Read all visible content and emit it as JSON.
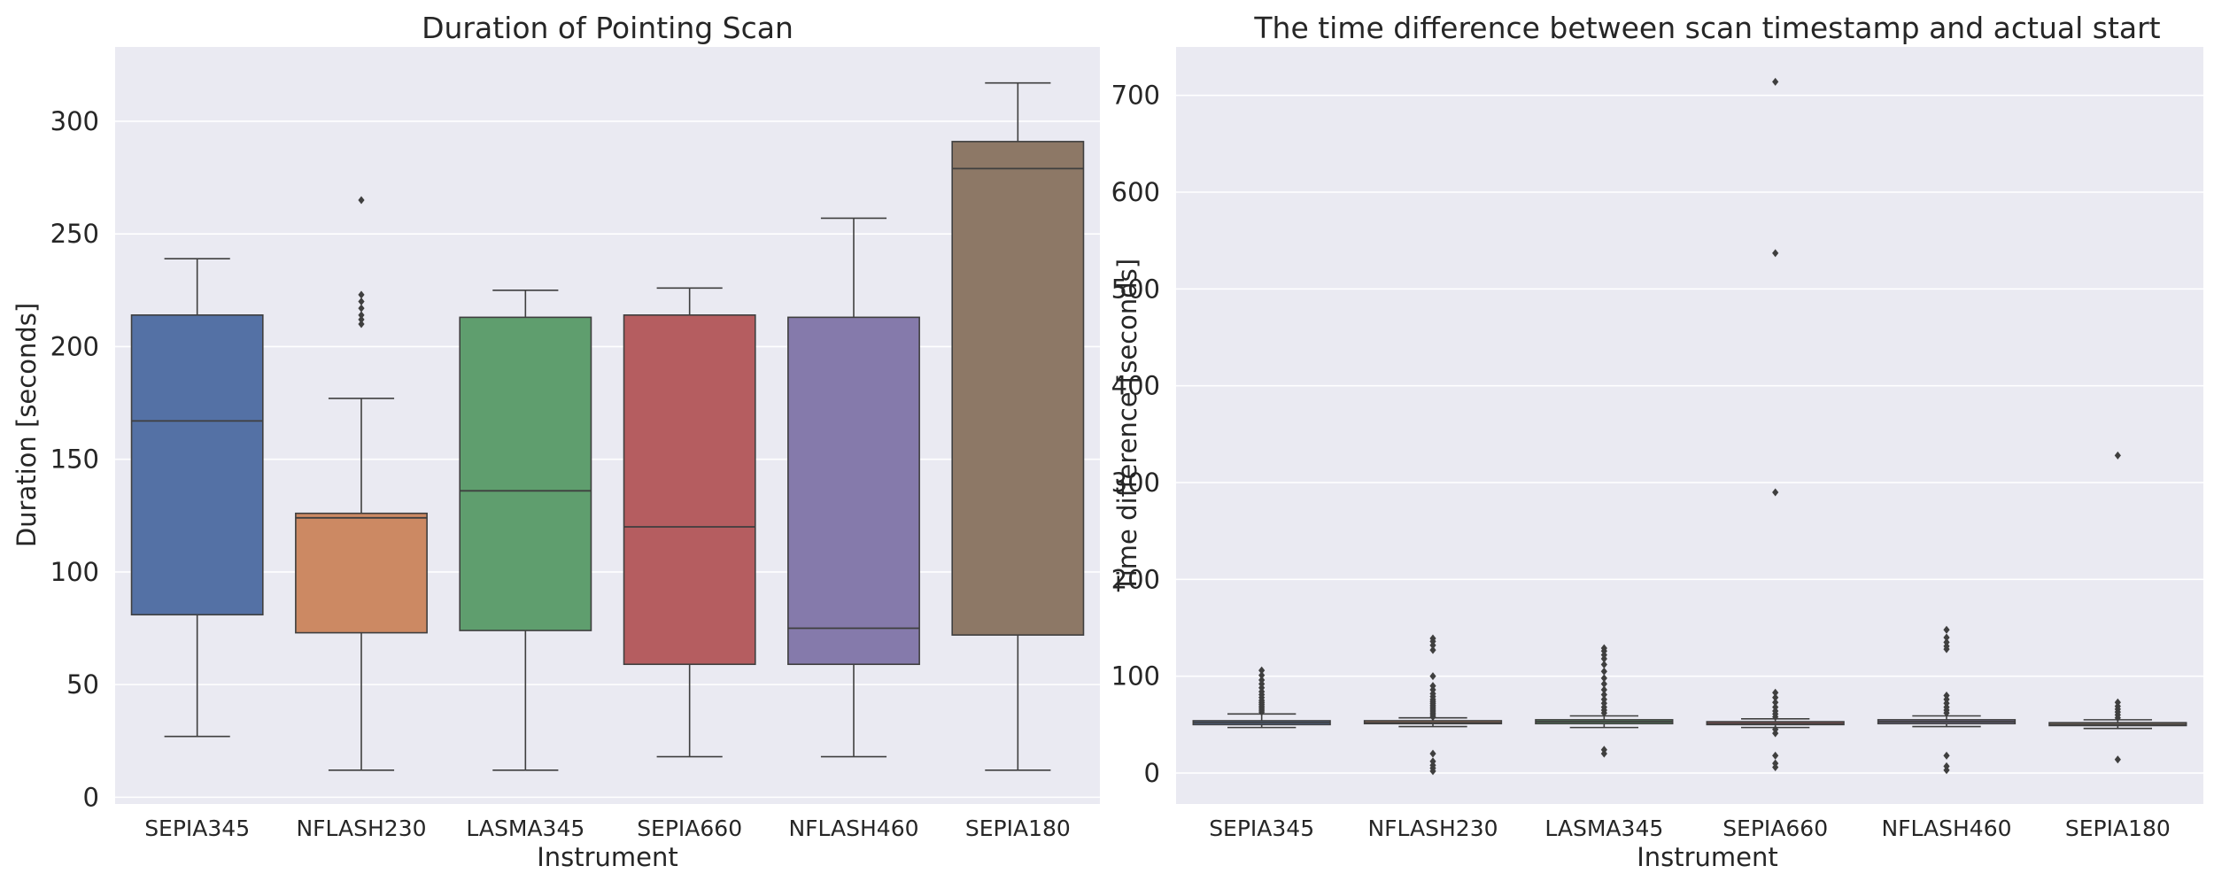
{
  "colors": {
    "plot_bg": "#EAEAF2",
    "grid": "#FFFFFF",
    "line": "#3F3F3F",
    "text": "#262626"
  },
  "chart_data": [
    {
      "type": "box",
      "title": "Duration of Pointing Scan",
      "xlabel": "Instrument",
      "ylabel": "Duration [seconds]",
      "ylim": [
        -3,
        333
      ],
      "yticks": [
        0,
        50,
        100,
        150,
        200,
        250,
        300
      ],
      "grid": true,
      "categories": [
        "SEPIA345",
        "NFLASH230",
        "LASMA345",
        "SEPIA660",
        "NFLASH460",
        "SEPIA180"
      ],
      "series": [
        {
          "color": "#5471A5",
          "whisker_low": 27,
          "q1": 81,
          "median": 167,
          "q3": 214,
          "whisker_high": 239,
          "outliers": []
        },
        {
          "color": "#CC8963",
          "whisker_low": 12,
          "q1": 73,
          "median": 124,
          "q3": 126,
          "whisker_high": 177,
          "outliers": [
            210,
            212,
            214,
            217,
            220,
            223,
            265
          ]
        },
        {
          "color": "#5F9E6E",
          "whisker_low": 12,
          "q1": 74,
          "median": 136,
          "q3": 213,
          "whisker_high": 225,
          "outliers": []
        },
        {
          "color": "#B55D60",
          "whisker_low": 18,
          "q1": 59,
          "median": 120,
          "q3": 214,
          "whisker_high": 226,
          "outliers": []
        },
        {
          "color": "#857AAB",
          "whisker_low": 18,
          "q1": 59,
          "median": 75,
          "q3": 213,
          "whisker_high": 257,
          "outliers": []
        },
        {
          "color": "#8D7866",
          "whisker_low": 12,
          "q1": 72,
          "median": 279,
          "q3": 291,
          "whisker_high": 317,
          "outliers": []
        }
      ]
    },
    {
      "type": "box",
      "title": "The time difference between scan timestamp and actual start",
      "xlabel": "Instrument",
      "ylabel": "Time difference [seconds]",
      "ylim": [
        -32,
        750
      ],
      "yticks": [
        0,
        100,
        200,
        300,
        400,
        500,
        600,
        700
      ],
      "grid": true,
      "categories": [
        "SEPIA345",
        "NFLASH230",
        "LASMA345",
        "SEPIA660",
        "NFLASH460",
        "SEPIA180"
      ],
      "series": [
        {
          "color": "#5471A5",
          "whisker_low": 47,
          "q1": 50,
          "median": 52,
          "q3": 54,
          "whisker_high": 61,
          "outliers": [
            63,
            65,
            67,
            69,
            71,
            73,
            75,
            78,
            81,
            84,
            88,
            92,
            96,
            101,
            106
          ]
        },
        {
          "color": "#CC8963",
          "whisker_low": 48,
          "q1": 51,
          "median": 52,
          "q3": 54,
          "whisker_high": 57,
          "outliers": [
            2,
            5,
            8,
            12,
            20,
            58,
            60,
            62,
            64,
            66,
            68,
            70,
            72,
            74,
            76,
            79,
            82,
            86,
            90,
            100,
            127,
            132,
            136,
            139
          ]
        },
        {
          "color": "#5F9E6E",
          "whisker_low": 47,
          "q1": 51,
          "median": 53,
          "q3": 55,
          "whisker_high": 59,
          "outliers": [
            20,
            24,
            62,
            65,
            68,
            72,
            76,
            81,
            86,
            92,
            98,
            105,
            112,
            118,
            122,
            126,
            129
          ]
        },
        {
          "color": "#B55D60",
          "whisker_low": 47,
          "q1": 50,
          "median": 51,
          "q3": 53,
          "whisker_high": 56,
          "outliers": [
            6,
            10,
            18,
            41,
            45,
            58,
            61,
            64,
            68,
            73,
            78,
            83,
            290,
            537,
            714
          ]
        },
        {
          "color": "#857AAB",
          "whisker_low": 48,
          "q1": 51,
          "median": 53,
          "q3": 55,
          "whisker_high": 59,
          "outliers": [
            3,
            7,
            18,
            62,
            65,
            68,
            72,
            76,
            80,
            128,
            131,
            135,
            140,
            148
          ]
        },
        {
          "color": "#8D7866",
          "whisker_low": 46,
          "q1": 49,
          "median": 50,
          "q3": 52,
          "whisker_high": 55,
          "outliers": [
            14,
            57,
            60,
            63,
            66,
            69,
            73,
            328
          ]
        }
      ]
    }
  ]
}
